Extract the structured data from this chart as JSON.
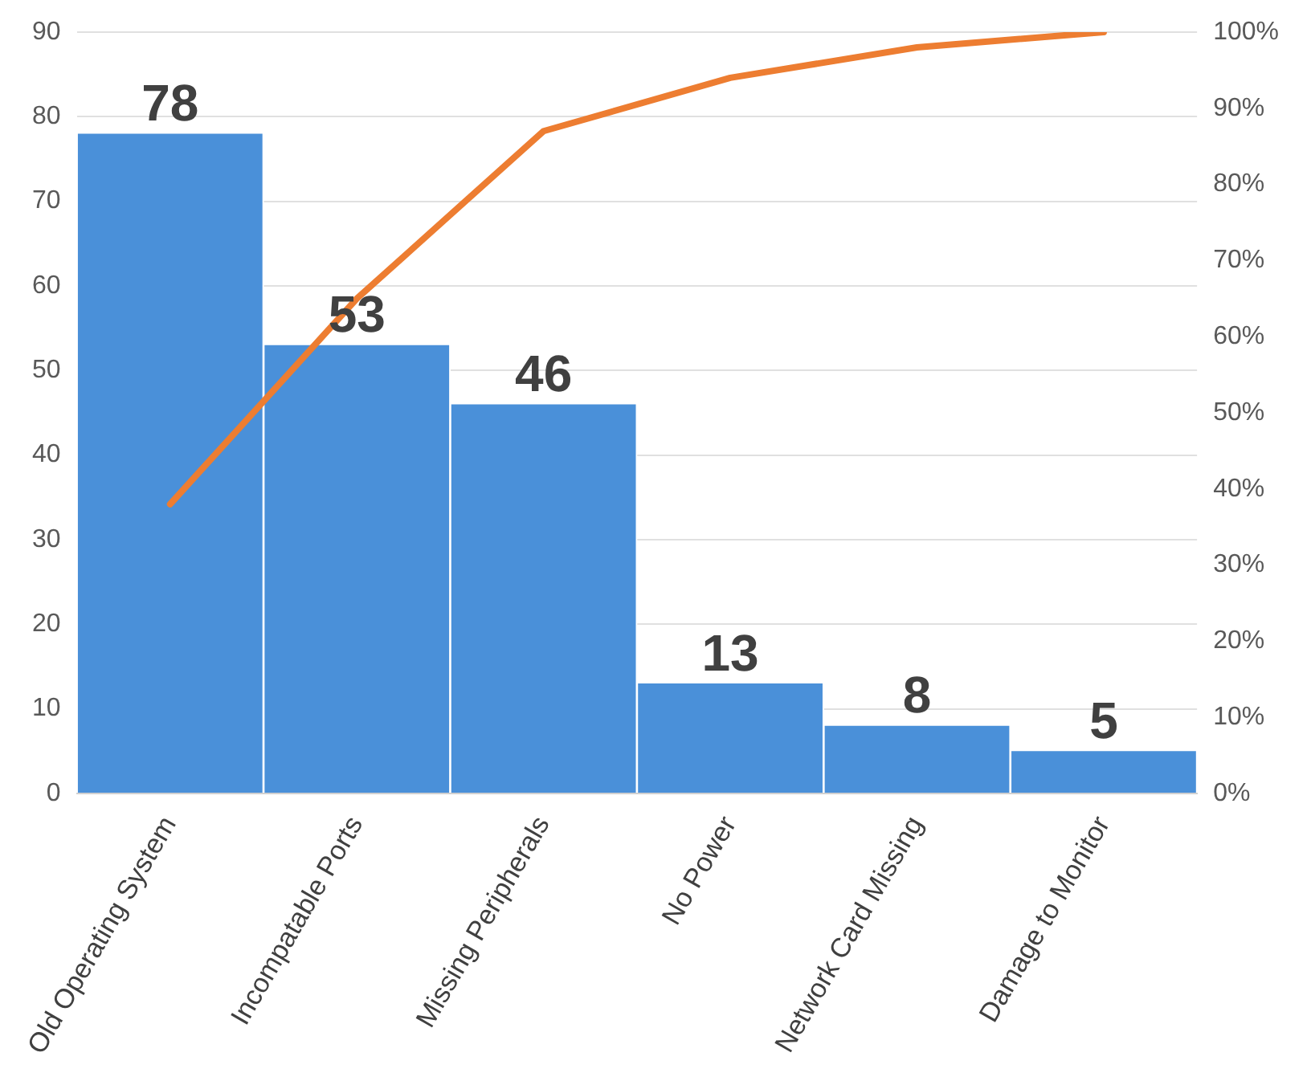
{
  "chart_data": {
    "type": "bar",
    "categories": [
      "Old Operating System",
      "Incompatable Ports",
      "Missing Peripherals",
      "No Power",
      "Network Card Missing",
      "Damage to Monitor"
    ],
    "series": [
      {
        "color": "#4a90d9",
        "values": [
          78,
          53,
          46,
          13,
          8,
          5
        ],
        "value_labels": [
          "78",
          "53",
          "46",
          "13",
          "8",
          "5"
        ]
      },
      {
        "type": "line",
        "color": "#ed7d31",
        "axis": "y2",
        "values": [
          38,
          65,
          87,
          94,
          98,
          100
        ]
      }
    ],
    "ylim": [
      0,
      90
    ],
    "yticks": [
      0,
      10,
      20,
      30,
      40,
      50,
      60,
      70,
      80,
      90
    ],
    "y2lim": [
      0,
      100
    ],
    "y2ticks": [
      {
        "value": 0,
        "label": "0%"
      },
      {
        "value": 10,
        "label": "10%"
      },
      {
        "value": 20,
        "label": "20%"
      },
      {
        "value": 30,
        "label": "30%"
      },
      {
        "value": 40,
        "label": "40%"
      },
      {
        "value": 50,
        "label": "50%"
      },
      {
        "value": 60,
        "label": "60%"
      },
      {
        "value": 70,
        "label": "70%"
      },
      {
        "value": 80,
        "label": "80%"
      },
      {
        "value": 90,
        "label": "90%"
      },
      {
        "value": 100,
        "label": "100%"
      }
    ],
    "grid": "y",
    "legend": false,
    "marker": "none",
    "line_style": "solid"
  }
}
